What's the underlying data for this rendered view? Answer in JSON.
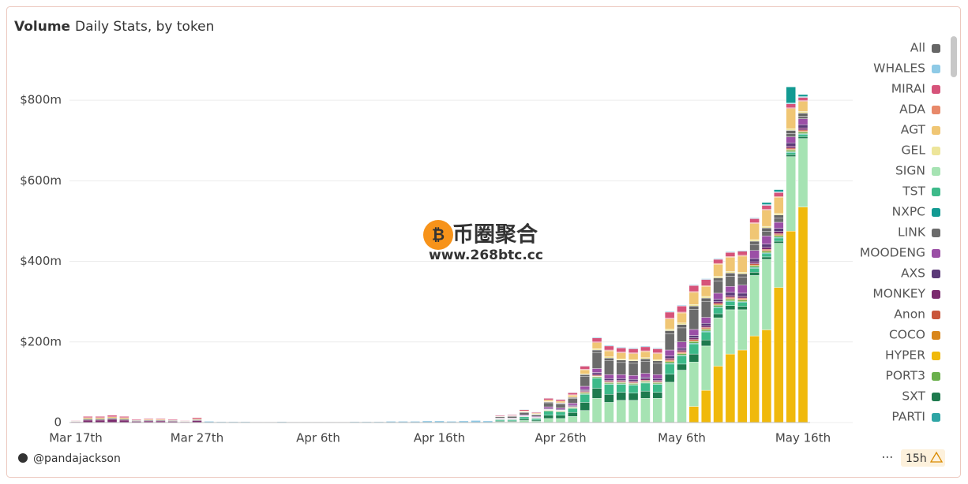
{
  "chart_data": {
    "type": "stacked_bar",
    "title": "Volume",
    "subtitle": "Daily Stats, by token",
    "categories": [
      "Mar 17th",
      null,
      null,
      null,
      null,
      null,
      null,
      null,
      null,
      null,
      "Mar 27th",
      null,
      null,
      null,
      null,
      null,
      null,
      null,
      null,
      null,
      "Apr 6th",
      null,
      null,
      null,
      null,
      null,
      null,
      null,
      null,
      null,
      "Apr 16th",
      null,
      null,
      null,
      null,
      null,
      null,
      null,
      null,
      null,
      "Apr 26th",
      null,
      null,
      null,
      null,
      null,
      null,
      null,
      null,
      null,
      "May 6th",
      null,
      null,
      null,
      null,
      null,
      null,
      null,
      null,
      null,
      "May 16th"
    ],
    "ylim": [
      0,
      900
    ],
    "yticks": [
      0,
      {
        "value": 200,
        "label": "$200m"
      },
      {
        "value": 400,
        "label": "$400m"
      },
      {
        "value": 600,
        "label": "$600m"
      },
      {
        "value": 800,
        "label": "$800m"
      }
    ],
    "grid": true,
    "legend": "right",
    "series": [
      {
        "name": "All",
        "color": "#666666",
        "values": [
          0,
          0,
          0,
          0,
          0,
          0,
          0,
          0,
          0,
          0,
          0,
          0,
          0,
          0,
          0,
          0,
          0,
          0,
          0,
          0,
          0,
          0,
          0,
          0,
          0,
          0,
          0,
          0,
          0,
          0,
          0,
          0,
          0,
          0,
          0,
          1,
          1,
          1,
          1,
          2,
          2,
          2,
          4,
          6,
          6,
          6,
          6,
          6,
          6,
          8,
          8,
          8,
          8,
          8,
          8,
          8,
          8,
          8,
          8,
          8,
          8
        ]
      },
      {
        "name": "WHALES",
        "color": "#8ecae6",
        "values": [
          0,
          0,
          0,
          0,
          0,
          0,
          0,
          0,
          0,
          0,
          0,
          3,
          2,
          2,
          2,
          1,
          1,
          2,
          1,
          1,
          1,
          1,
          1,
          2,
          2,
          2,
          3,
          3,
          3,
          4,
          4,
          3,
          4,
          5,
          4,
          1,
          1,
          1,
          1,
          1,
          1,
          1,
          1,
          2,
          2,
          2,
          2,
          2,
          2,
          2,
          2,
          2,
          2,
          2,
          2,
          2,
          2,
          2,
          2,
          2,
          2
        ]
      },
      {
        "name": "MIRAI",
        "color": "#d6537a",
        "values": [
          1,
          3,
          3,
          4,
          3,
          2,
          2,
          2,
          2,
          1,
          3,
          0,
          0,
          0,
          0,
          0,
          0,
          0,
          0,
          0,
          0,
          0,
          0,
          0,
          0,
          0,
          0,
          0,
          0,
          0,
          0,
          0,
          0,
          0,
          0,
          2,
          2,
          3,
          2,
          4,
          4,
          5,
          8,
          10,
          10,
          10,
          10,
          10,
          10,
          15,
          15,
          15,
          15,
          10,
          10,
          10,
          10,
          10,
          10,
          10,
          8
        ]
      },
      {
        "name": "ADA",
        "color": "#e8896a",
        "values": [
          0,
          0,
          0,
          0,
          0,
          0,
          0,
          0,
          0,
          0,
          0,
          0,
          0,
          0,
          0,
          0,
          0,
          0,
          0,
          0,
          0,
          0,
          0,
          0,
          0,
          0,
          0,
          0,
          0,
          0,
          0,
          0,
          0,
          0,
          0,
          0,
          0,
          0,
          0,
          0,
          0,
          1,
          1,
          2,
          2,
          2,
          2,
          2,
          2,
          2,
          2,
          2,
          2,
          2,
          2,
          2,
          2,
          2,
          2,
          2,
          2
        ]
      },
      {
        "name": "AGT",
        "color": "#f0c674",
        "values": [
          1,
          3,
          3,
          3,
          3,
          1,
          2,
          2,
          1,
          1,
          2,
          0,
          0,
          0,
          0,
          0,
          0,
          0,
          0,
          0,
          0,
          0,
          0,
          0,
          0,
          0,
          0,
          0,
          0,
          0,
          0,
          0,
          0,
          0,
          0,
          1,
          1,
          2,
          2,
          4,
          4,
          5,
          10,
          15,
          15,
          15,
          15,
          15,
          15,
          25,
          25,
          30,
          25,
          30,
          35,
          40,
          40,
          40,
          40,
          50,
          25
        ]
      },
      {
        "name": "GEL",
        "color": "#ede59a",
        "values": [
          0,
          0,
          0,
          0,
          0,
          0,
          0,
          0,
          0,
          0,
          0,
          0,
          0,
          0,
          0,
          0,
          0,
          0,
          0,
          0,
          0,
          0,
          0,
          0,
          0,
          0,
          0,
          0,
          0,
          0,
          0,
          0,
          0,
          0,
          0,
          0,
          0,
          1,
          1,
          1,
          1,
          1,
          2,
          3,
          3,
          3,
          3,
          3,
          3,
          4,
          4,
          4,
          4,
          4,
          4,
          4,
          4,
          4,
          4,
          4,
          4
        ]
      },
      {
        "name": "SIGN",
        "color": "#a6e3b3",
        "values": [
          0,
          0,
          0,
          0,
          0,
          0,
          0,
          0,
          0,
          0,
          0,
          0,
          0,
          0,
          0,
          0,
          0,
          0,
          0,
          0,
          0,
          0,
          0,
          0,
          0,
          0,
          0,
          0,
          0,
          0,
          0,
          0,
          0,
          0,
          0,
          2,
          2,
          5,
          3,
          10,
          10,
          15,
          30,
          60,
          50,
          55,
          55,
          60,
          60,
          100,
          130,
          110,
          110,
          120,
          110,
          100,
          150,
          175,
          110,
          185,
          170
        ]
      },
      {
        "name": "TST",
        "color": "#3dba8a",
        "values": [
          0,
          0,
          0,
          0,
          0,
          0,
          0,
          0,
          0,
          0,
          0,
          0,
          0,
          0,
          0,
          0,
          0,
          0,
          0,
          0,
          0,
          0,
          0,
          0,
          0,
          0,
          0,
          0,
          0,
          0,
          0,
          0,
          0,
          0,
          0,
          3,
          3,
          5,
          4,
          10,
          8,
          10,
          20,
          25,
          25,
          20,
          20,
          20,
          20,
          25,
          20,
          25,
          20,
          15,
          10,
          10,
          10,
          8,
          8,
          5,
          5
        ]
      },
      {
        "name": "NXPC",
        "color": "#129a92",
        "values": [
          0,
          0,
          0,
          0,
          0,
          0,
          0,
          0,
          0,
          0,
          0,
          0,
          0,
          0,
          0,
          0,
          0,
          0,
          0,
          0,
          0,
          0,
          0,
          0,
          0,
          0,
          0,
          0,
          0,
          0,
          0,
          0,
          0,
          0,
          0,
          0,
          0,
          0,
          0,
          0,
          0,
          0,
          0,
          0,
          0,
          0,
          0,
          0,
          0,
          0,
          0,
          0,
          0,
          0,
          0,
          0,
          0,
          5,
          5,
          40,
          5
        ]
      },
      {
        "name": "LINK",
        "color": "#6b6b6b",
        "values": [
          1,
          3,
          3,
          3,
          3,
          2,
          2,
          2,
          2,
          1,
          2,
          0,
          0,
          0,
          0,
          0,
          0,
          0,
          0,
          0,
          0,
          0,
          0,
          0,
          0,
          0,
          0,
          0,
          0,
          0,
          0,
          0,
          0,
          0,
          0,
          3,
          4,
          6,
          4,
          10,
          10,
          12,
          25,
          40,
          35,
          30,
          30,
          30,
          28,
          40,
          35,
          50,
          40,
          30,
          25,
          20,
          15,
          12,
          10,
          8,
          6
        ]
      },
      {
        "name": "MOODENG",
        "color": "#9b4fa6",
        "values": [
          0,
          0,
          0,
          0,
          0,
          0,
          0,
          0,
          0,
          0,
          0,
          0,
          0,
          0,
          0,
          0,
          0,
          0,
          0,
          0,
          0,
          0,
          0,
          0,
          0,
          0,
          0,
          0,
          0,
          0,
          0,
          0,
          0,
          0,
          0,
          1,
          1,
          2,
          2,
          4,
          3,
          5,
          8,
          10,
          10,
          10,
          10,
          10,
          10,
          15,
          15,
          15,
          15,
          15,
          15,
          20,
          20,
          20,
          15,
          15,
          15
        ]
      },
      {
        "name": "AXS",
        "color": "#5b3a78",
        "values": [
          0,
          0,
          0,
          0,
          0,
          0,
          0,
          0,
          0,
          0,
          0,
          0,
          0,
          0,
          0,
          0,
          0,
          0,
          0,
          0,
          0,
          0,
          0,
          0,
          0,
          0,
          0,
          0,
          0,
          0,
          0,
          0,
          0,
          0,
          0,
          1,
          1,
          1,
          1,
          2,
          2,
          2,
          3,
          4,
          4,
          4,
          4,
          4,
          4,
          5,
          5,
          6,
          6,
          6,
          8,
          8,
          8,
          8,
          8,
          8,
          8
        ]
      },
      {
        "name": "MONKEY",
        "color": "#7b2a6e",
        "values": [
          2,
          6,
          6,
          8,
          6,
          3,
          4,
          4,
          3,
          2,
          5,
          0,
          0,
          0,
          0,
          0,
          0,
          0,
          0,
          0,
          0,
          0,
          0,
          0,
          0,
          0,
          0,
          0,
          0,
          0,
          0,
          0,
          0,
          0,
          0,
          1,
          1,
          1,
          1,
          1,
          1,
          2,
          2,
          3,
          3,
          3,
          3,
          3,
          3,
          4,
          4,
          4,
          4,
          4,
          4,
          4,
          5,
          5,
          5,
          5,
          5
        ]
      },
      {
        "name": "Anon",
        "color": "#c9553a",
        "values": [
          0,
          0,
          0,
          0,
          0,
          0,
          0,
          0,
          0,
          0,
          0,
          0,
          0,
          0,
          0,
          0,
          0,
          0,
          0,
          0,
          0,
          0,
          0,
          0,
          0,
          0,
          0,
          0,
          0,
          0,
          0,
          0,
          0,
          0,
          0,
          0,
          0,
          0,
          0,
          1,
          1,
          1,
          2,
          2,
          2,
          2,
          2,
          2,
          2,
          3,
          3,
          3,
          3,
          3,
          3,
          3,
          3,
          3,
          3,
          3,
          3
        ]
      },
      {
        "name": "COCO",
        "color": "#d9861a",
        "values": [
          0,
          0,
          0,
          0,
          0,
          0,
          0,
          0,
          0,
          0,
          0,
          0,
          0,
          0,
          0,
          0,
          0,
          0,
          0,
          0,
          0,
          0,
          0,
          0,
          0,
          0,
          0,
          0,
          0,
          0,
          0,
          0,
          0,
          0,
          0,
          0,
          0,
          0,
          0,
          1,
          1,
          1,
          1,
          1,
          1,
          1,
          1,
          1,
          1,
          2,
          2,
          2,
          2,
          2,
          2,
          2,
          2,
          2,
          2,
          2,
          2
        ]
      },
      {
        "name": "HYPER",
        "color": "#f0b90b",
        "values": [
          0,
          0,
          0,
          0,
          0,
          0,
          0,
          0,
          0,
          0,
          0,
          0,
          0,
          0,
          0,
          0,
          0,
          0,
          0,
          0,
          0,
          0,
          0,
          0,
          0,
          0,
          0,
          0,
          0,
          0,
          0,
          0,
          0,
          0,
          0,
          0,
          0,
          0,
          0,
          0,
          0,
          0,
          0,
          0,
          0,
          0,
          0,
          0,
          0,
          0,
          0,
          40,
          80,
          140,
          170,
          180,
          215,
          230,
          335,
          475,
          535
        ]
      },
      {
        "name": "PORT3",
        "color": "#6ab04c",
        "values": [
          0,
          0,
          0,
          0,
          0,
          0,
          0,
          0,
          0,
          0,
          0,
          0,
          0,
          0,
          0,
          0,
          0,
          0,
          0,
          0,
          0,
          0,
          0,
          0,
          0,
          0,
          0,
          0,
          0,
          0,
          0,
          0,
          0,
          0,
          0,
          1,
          1,
          1,
          1,
          2,
          2,
          2,
          3,
          3,
          3,
          3,
          3,
          3,
          3,
          4,
          4,
          4,
          4,
          4,
          4,
          4,
          4,
          4,
          4,
          4,
          4
        ]
      },
      {
        "name": "SXT",
        "color": "#1e7a4e",
        "values": [
          0,
          0,
          0,
          0,
          0,
          0,
          0,
          0,
          0,
          0,
          0,
          0,
          0,
          0,
          0,
          0,
          0,
          0,
          0,
          0,
          0,
          0,
          0,
          0,
          0,
          0,
          0,
          0,
          0,
          0,
          0,
          0,
          0,
          0,
          0,
          2,
          2,
          4,
          3,
          8,
          8,
          10,
          20,
          25,
          20,
          20,
          18,
          18,
          15,
          20,
          15,
          20,
          15,
          10,
          10,
          8,
          8,
          6,
          5,
          5,
          5
        ]
      },
      {
        "name": "PARTI",
        "color": "#2ea5a5",
        "values": [
          0,
          0,
          0,
          0,
          0,
          0,
          0,
          0,
          0,
          0,
          0,
          0,
          0,
          0,
          0,
          0,
          0,
          0,
          0,
          0,
          0,
          0,
          0,
          0,
          0,
          0,
          0,
          0,
          0,
          0,
          0,
          0,
          0,
          0,
          0,
          0,
          0,
          0,
          0,
          0,
          0,
          0,
          1,
          1,
          1,
          1,
          1,
          1,
          1,
          2,
          2,
          2,
          2,
          2,
          2,
          2,
          2,
          2,
          2,
          2,
          2
        ]
      }
    ]
  },
  "watermark": {
    "name": "币圈聚合",
    "url": "www.268btc.cc"
  },
  "footer": {
    "author": "@pandajackson",
    "menu": "⋯",
    "age": "15h"
  }
}
